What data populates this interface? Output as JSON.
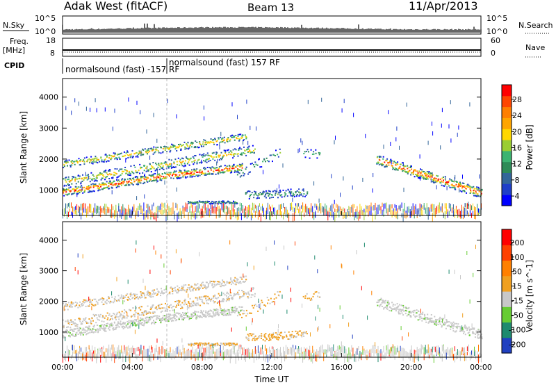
{
  "header": {
    "station": "Adak West (fitACF)",
    "beam": "Beam 13",
    "date": "11/Apr/2013"
  },
  "top_panels": {
    "nsky": {
      "label": "N.Sky",
      "ticks": [
        "10^5",
        "10^0"
      ],
      "right_label": "N.Search",
      "right_ticks": [
        "10^5",
        "10^0"
      ]
    },
    "freq": {
      "label_line1": "Freq.",
      "label_line2": "[MHz]",
      "ticks": [
        "18",
        "8"
      ],
      "right_label": "Nave",
      "right_ticks": [
        "60",
        "0"
      ]
    },
    "cpid": {
      "label": "CPID",
      "modes": [
        "normalsound (fast) -157 RF",
        "normalsound (fast) 157 RF"
      ]
    }
  },
  "chart_data": [
    {
      "type": "heatmap",
      "name": "power",
      "ylabel": "Slant Range [km]",
      "yticks": [
        "4000",
        "3000",
        "2000",
        "1000"
      ],
      "ylim": [
        180,
        4600
      ],
      "xlabel": "Time UT",
      "xticks": [
        "00:00",
        "04:00",
        "08:00",
        "12:00",
        "16:00",
        "20:00",
        "00:00"
      ],
      "xlim_hours": [
        0,
        24
      ],
      "colorbar": {
        "label": "Power [dB]",
        "ticks": [
          "28",
          "24",
          "20",
          "16",
          "12",
          "8",
          "4"
        ],
        "range": [
          0,
          30
        ],
        "colors": [
          "#0000ff",
          "#1f3fc8",
          "#336699",
          "#2e8b57",
          "#3cb371",
          "#9acd32",
          "#ffd700",
          "#ffa500",
          "#ff7f00",
          "#ff4500",
          "#ff0000"
        ]
      }
    },
    {
      "type": "heatmap",
      "name": "velocity",
      "ylabel": "Slant Range [km]",
      "yticks": [
        "4000",
        "3000",
        "2000",
        "1000"
      ],
      "ylim": [
        180,
        4600
      ],
      "xlabel": "Time UT",
      "xticks": [
        "00:00",
        "04:00",
        "08:00",
        "12:00",
        "16:00",
        "20:00",
        "00:00"
      ],
      "xlim_hours": [
        0,
        24
      ],
      "colorbar": {
        "label": "Velocity [m s^-1]",
        "ticks": [
          "200",
          "100",
          "50",
          "15",
          "-15",
          "-50",
          "-100",
          "-200"
        ],
        "range": [
          -250,
          250
        ],
        "colors": [
          "#2040c0",
          "#1e8a6e",
          "#66cc33",
          "#c8c8c8",
          "#f0a020",
          "#ff8000",
          "#ff4000",
          "#ff0000"
        ]
      }
    }
  ]
}
